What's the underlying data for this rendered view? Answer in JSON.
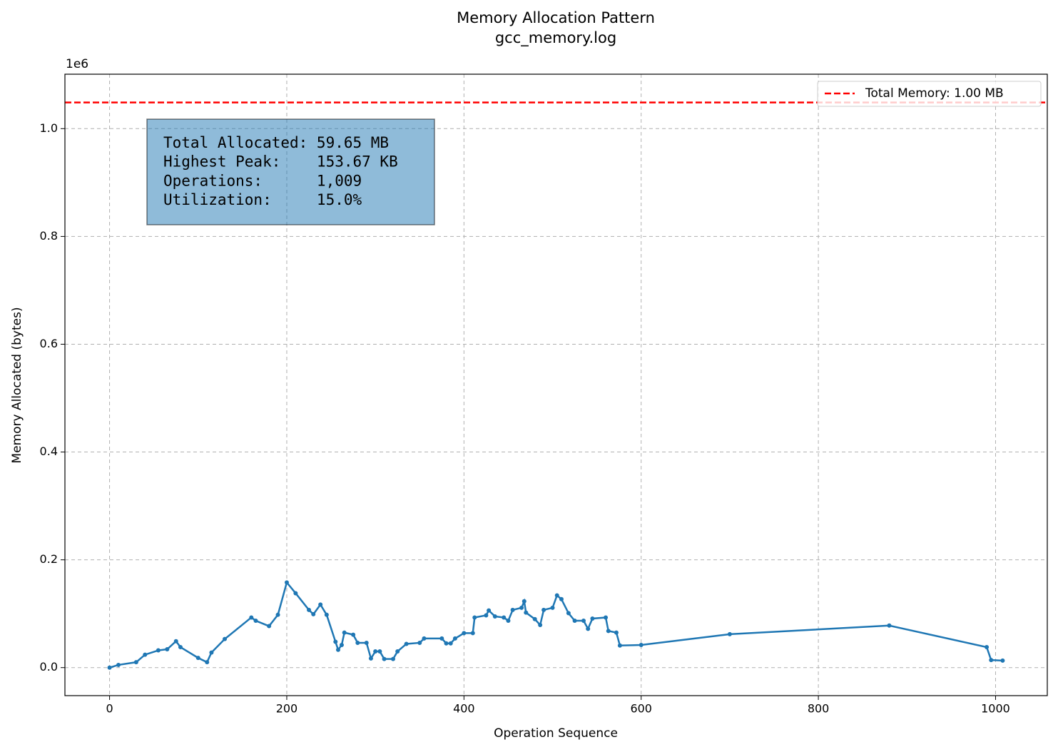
{
  "chart_data": {
    "type": "line",
    "title": "Memory Allocation Pattern",
    "subtitle": "gcc_memory.log",
    "x_label": "Operation Sequence",
    "y_label": "Memory Allocated (bytes)",
    "y_offset_label": "1e6",
    "xlim": [
      -50.4,
      1058.4
    ],
    "ylim": [
      -52000,
      1101000
    ],
    "xticks": [
      0,
      200,
      400,
      600,
      800,
      1000
    ],
    "yticks": [
      {
        "value": 0,
        "label": "0.0"
      },
      {
        "value": 200000,
        "label": "0.2"
      },
      {
        "value": 400000,
        "label": "0.4"
      },
      {
        "value": 600000,
        "label": "0.6"
      },
      {
        "value": 800000,
        "label": "0.8"
      },
      {
        "value": 1000000,
        "label": "1.0"
      }
    ],
    "grid": true,
    "legend": "upper right",
    "x": [
      0,
      10,
      30,
      40,
      55,
      65,
      75,
      80,
      100,
      110,
      115,
      130,
      160,
      165,
      180,
      190,
      200,
      210,
      225,
      230,
      238,
      245,
      255,
      258,
      262,
      265,
      275,
      280,
      290,
      295,
      300,
      305,
      310,
      320,
      325,
      335,
      350,
      355,
      375,
      380,
      385,
      390,
      400,
      410,
      412,
      425,
      428,
      435,
      445,
      450,
      455,
      465,
      468,
      470,
      480,
      486,
      490,
      500,
      505,
      510,
      518,
      525,
      535,
      540,
      545,
      560,
      563,
      572,
      576,
      600,
      700,
      880,
      990,
      995,
      1008
    ],
    "series": [
      {
        "color": "#1f77b4",
        "values": [
          0,
          5000,
          10000,
          24000,
          32000,
          34000,
          49000,
          38000,
          18000,
          10000,
          28000,
          53000,
          93000,
          87000,
          77000,
          98000,
          158000,
          138000,
          107000,
          99000,
          117000,
          98000,
          48000,
          33000,
          42000,
          65000,
          61000,
          46000,
          46000,
          17000,
          30000,
          30000,
          16000,
          16000,
          30000,
          44000,
          46000,
          54000,
          54000,
          45000,
          45000,
          54000,
          64000,
          64000,
          93000,
          97000,
          106000,
          95000,
          93000,
          87000,
          107000,
          111000,
          123000,
          102000,
          90000,
          79000,
          107000,
          111000,
          134000,
          127000,
          101000,
          87000,
          87000,
          72000,
          91000,
          93000,
          68000,
          65000,
          41000,
          42000,
          62000,
          78000,
          38000,
          14000,
          13000
        ]
      }
    ],
    "reference_line": {
      "value": 1048576,
      "label": "Total Memory: 1.00 MB",
      "color": "#ff0000"
    },
    "annotation": [
      "Total Allocated: 59.65 MB",
      "Highest Peak:    153.67 KB",
      "Operations:      1,009",
      "Utilization:     15.0%"
    ]
  }
}
